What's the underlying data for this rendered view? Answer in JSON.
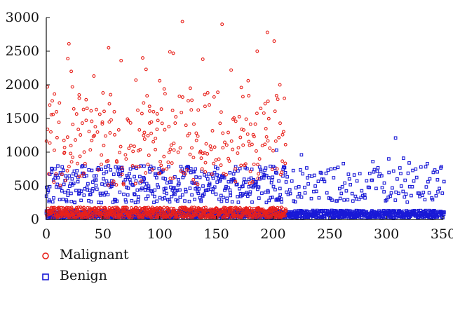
{
  "chart_data": {
    "type": "scatter",
    "title": "",
    "xlabel": "",
    "ylabel": "",
    "xlim": [
      0,
      350
    ],
    "ylim": [
      0,
      3000
    ],
    "x_ticks": [
      0,
      50,
      100,
      150,
      200,
      250,
      300,
      350
    ],
    "y_ticks": [
      0,
      500,
      1000,
      1500,
      2000,
      2500,
      3000
    ],
    "x_tick_labels": [
      "0",
      "50",
      "100",
      "150",
      "200",
      "250",
      "300",
      "350"
    ],
    "y_tick_labels": [
      "0",
      "500",
      "1000",
      "1500",
      "2000",
      "2500",
      "3000"
    ],
    "grid": false,
    "legend_position": "bottom-left",
    "series": [
      {
        "name": "Malignant",
        "marker": "circle",
        "color": "#e8201a",
        "x_range": [
          0,
          211
        ],
        "highlight_points": [
          [
            1,
            1970
          ],
          [
            3,
            1700
          ],
          [
            4,
            1300
          ],
          [
            6,
            1560
          ],
          [
            9,
            1600
          ],
          [
            19,
            2390
          ],
          [
            20,
            2610
          ],
          [
            22,
            2200
          ],
          [
            23,
            1970
          ],
          [
            29,
            1850
          ],
          [
            36,
            1650
          ],
          [
            42,
            2130
          ],
          [
            50,
            1880
          ],
          [
            55,
            2550
          ],
          [
            60,
            1600
          ],
          [
            66,
            2360
          ],
          [
            79,
            2070
          ],
          [
            85,
            2400
          ],
          [
            88,
            2230
          ],
          [
            91,
            1680
          ],
          [
            100,
            2060
          ],
          [
            104,
            1940
          ],
          [
            109,
            2490
          ],
          [
            112,
            2470
          ],
          [
            120,
            2940
          ],
          [
            127,
            1950
          ],
          [
            138,
            2380
          ],
          [
            140,
            1680
          ],
          [
            148,
            1820
          ],
          [
            155,
            2900
          ],
          [
            163,
            2220
          ],
          [
            172,
            1960
          ],
          [
            178,
            2060
          ],
          [
            186,
            2500
          ],
          [
            193,
            1720
          ],
          [
            195,
            2780
          ],
          [
            201,
            2650
          ],
          [
            203,
            1840
          ],
          [
            206,
            2000
          ],
          [
            210,
            1800
          ]
        ]
      },
      {
        "name": "Benign",
        "marker": "square",
        "color": "#1919d6",
        "x_range": [
          0,
          350
        ],
        "highlight_points": [
          [
            203,
            1030
          ],
          [
            225,
            960
          ],
          [
            262,
            830
          ],
          [
            288,
            860
          ],
          [
            302,
            900
          ],
          [
            308,
            1210
          ],
          [
            315,
            910
          ],
          [
            320,
            840
          ],
          [
            336,
            830
          ],
          [
            345,
            590
          ]
        ]
      }
    ]
  },
  "legend": {
    "items": [
      {
        "label": "Malignant",
        "color": "#e8201a",
        "marker": "circle"
      },
      {
        "label": "Benign",
        "color": "#1919d6",
        "marker": "square"
      }
    ]
  }
}
